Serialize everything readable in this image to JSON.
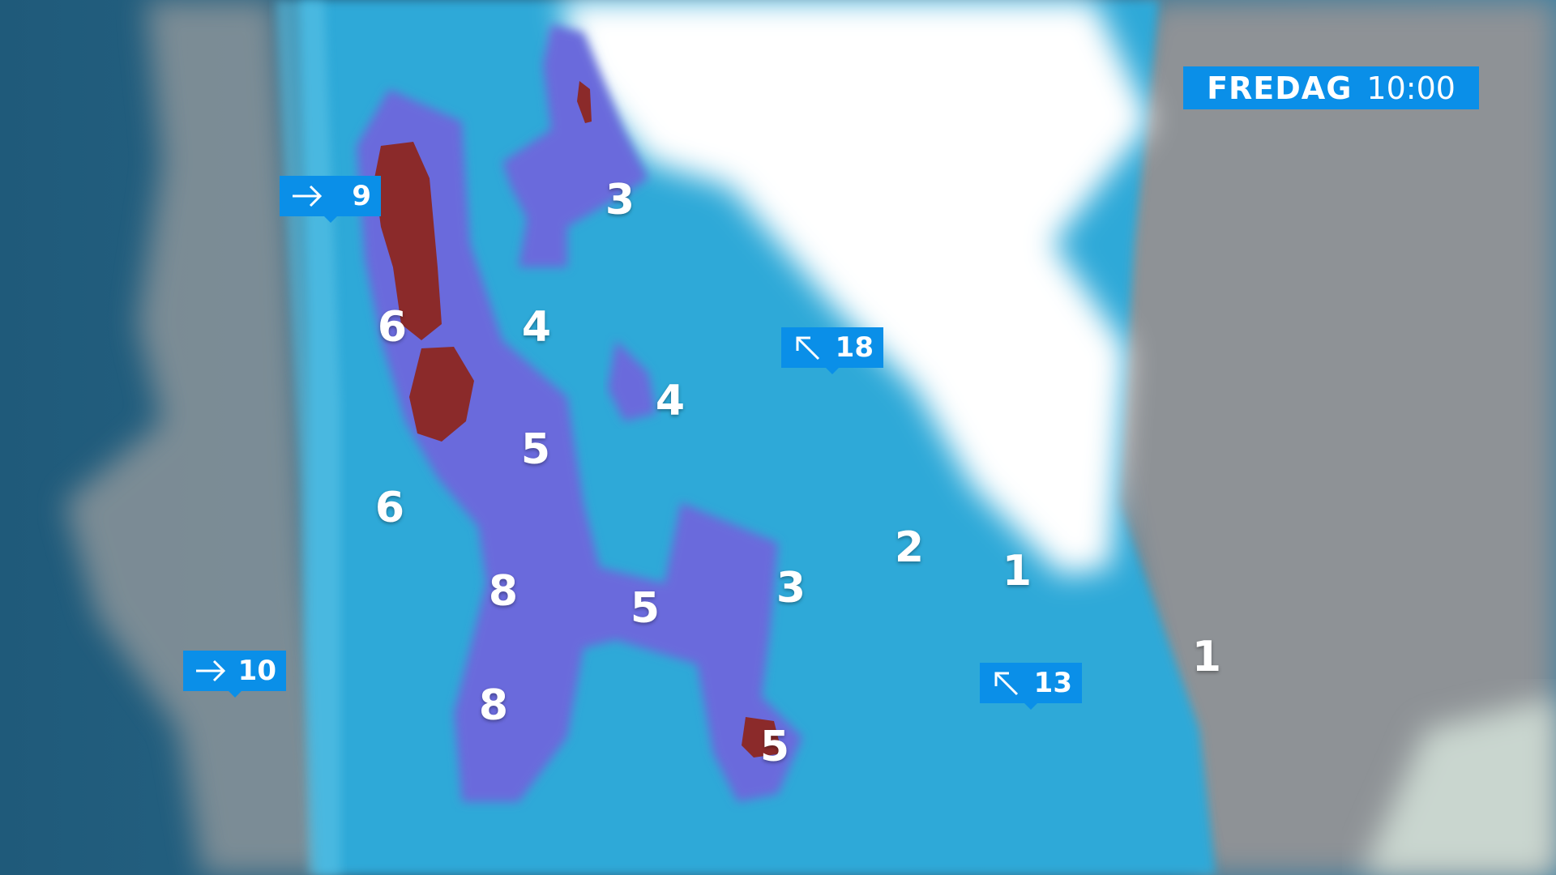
{
  "header": {
    "day": "FREDAG",
    "time": "10:00"
  },
  "colors": {
    "badge": "#0a8fe8",
    "sea": "#2e6d8e",
    "land": "#8e9499",
    "precip_light": "#2fa9d8",
    "precip_medium": "#6b6bdc",
    "precip_heavy": "#8b2a2a",
    "snow": "#ffffff"
  },
  "wind": [
    {
      "direction_icon": "arrow-right-icon",
      "speed": "9"
    },
    {
      "direction_icon": "arrow-right-icon",
      "speed": "10"
    },
    {
      "direction_icon": "arrow-up-left-icon",
      "speed": "18"
    },
    {
      "direction_icon": "arrow-up-left-icon",
      "speed": "13"
    }
  ],
  "values": [
    "3",
    "6",
    "4",
    "4",
    "5",
    "6",
    "2",
    "1",
    "8",
    "5",
    "3",
    "1",
    "8",
    "5"
  ]
}
